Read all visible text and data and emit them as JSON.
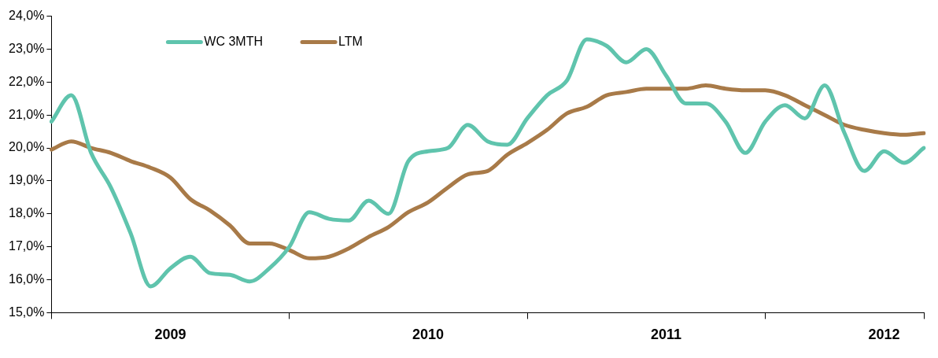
{
  "chart_data": {
    "type": "line",
    "categories": [
      null,
      null,
      null,
      null,
      null,
      null,
      "2009",
      null,
      null,
      null,
      null,
      null,
      null,
      null,
      null,
      null,
      null,
      null,
      null,
      "2010",
      null,
      null,
      null,
      null,
      null,
      null,
      null,
      null,
      null,
      null,
      null,
      "2011",
      null,
      null,
      null,
      null,
      null,
      null,
      null,
      null,
      null,
      null,
      "2012",
      null,
      null
    ],
    "series": [
      {
        "name": "WC 3MTH",
        "color": "#5fc4ad",
        "values": [
          20.8,
          21.6,
          19.85,
          18.8,
          17.4,
          15.8,
          16.35,
          16.7,
          16.2,
          16.15,
          15.95,
          16.35,
          17.0,
          18.05,
          17.85,
          17.8,
          18.4,
          18.0,
          19.6,
          19.9,
          20.0,
          20.7,
          20.2,
          20.1,
          20.9,
          21.6,
          22.05,
          23.3,
          23.1,
          22.6,
          23.0,
          22.2,
          21.35,
          21.35,
          20.8,
          19.85,
          20.8,
          21.3,
          20.9,
          21.9,
          20.45,
          19.3,
          19.9,
          19.55,
          20.0
        ]
      },
      {
        "name": "LTM",
        "color": "#a87a48",
        "values": [
          19.95,
          20.2,
          20.0,
          19.85,
          19.6,
          19.4,
          19.1,
          18.45,
          18.1,
          17.65,
          17.1,
          17.1,
          16.9,
          16.65,
          16.7,
          16.95,
          17.3,
          17.6,
          18.05,
          18.35,
          18.8,
          19.2,
          19.3,
          19.8,
          20.15,
          20.55,
          21.05,
          21.25,
          21.6,
          21.7,
          21.8,
          21.8,
          21.8,
          21.9,
          21.8,
          21.75,
          21.75,
          21.6,
          21.3,
          21.0,
          20.7,
          20.55,
          20.45,
          20.4,
          20.45
        ]
      }
    ],
    "ylim": [
      15,
      24
    ],
    "yticks": [
      {
        "value": 15,
        "label": "15,0%"
      },
      {
        "value": 16,
        "label": "16,0%"
      },
      {
        "value": 17,
        "label": "17,0%"
      },
      {
        "value": 18,
        "label": "18,0%"
      },
      {
        "value": 19,
        "label": "19,0%"
      },
      {
        "value": 20,
        "label": "20,0%"
      },
      {
        "value": 21,
        "label": "21,0%"
      },
      {
        "value": 22,
        "label": "22,0%"
      },
      {
        "value": 23,
        "label": "23,0%"
      },
      {
        "value": 24,
        "label": "24,0%"
      }
    ],
    "grid": false,
    "legend": "top left",
    "marker": "none",
    "line_style": "solid"
  }
}
